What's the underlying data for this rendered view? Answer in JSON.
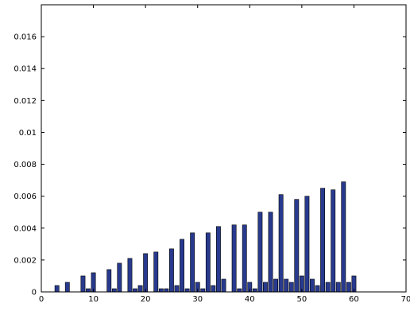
{
  "chart_data": {
    "type": "bar",
    "title": "",
    "xlabel": "",
    "ylabel": "",
    "xlim": [
      0,
      70
    ],
    "ylim": [
      0,
      0.018
    ],
    "grid": false,
    "colors": {
      "bar_fill": "#283a8e",
      "bar_edge": "#000000",
      "axes": "#000000",
      "background": "#ffffff"
    },
    "x_ticks": [
      {
        "value": 0,
        "label": "0"
      },
      {
        "value": 10,
        "label": "10"
      },
      {
        "value": 20,
        "label": "20"
      },
      {
        "value": 30,
        "label": "30"
      },
      {
        "value": 40,
        "label": "40"
      },
      {
        "value": 50,
        "label": "50"
      },
      {
        "value": 60,
        "label": "60"
      },
      {
        "value": 70,
        "label": "70"
      }
    ],
    "y_ticks": [
      {
        "value": 0,
        "label": "0"
      },
      {
        "value": 0.002,
        "label": "0.002"
      },
      {
        "value": 0.004,
        "label": "0.004"
      },
      {
        "value": 0.006,
        "label": "0.006"
      },
      {
        "value": 0.008,
        "label": "0.008"
      },
      {
        "value": 0.01,
        "label": "0.01"
      },
      {
        "value": 0.012,
        "label": "0.012"
      },
      {
        "value": 0.014,
        "label": "0.014"
      },
      {
        "value": 0.016,
        "label": "0.016"
      }
    ],
    "x": [
      1,
      2,
      3,
      4,
      5,
      6,
      7,
      8,
      9,
      10,
      11,
      12,
      13,
      14,
      15,
      16,
      17,
      18,
      19,
      20,
      21,
      22,
      23,
      24,
      25,
      26,
      27,
      28,
      29,
      30,
      31,
      32,
      33,
      34,
      35,
      36,
      37,
      38,
      39,
      40,
      41,
      42,
      43,
      44,
      45,
      46,
      47,
      48,
      49,
      50,
      51,
      52,
      53,
      54,
      55,
      56,
      57,
      58,
      59,
      60
    ],
    "values": [
      0,
      0,
      0.0004,
      0,
      0.0006,
      0,
      0,
      0.001,
      0.0002,
      0.0012,
      0,
      0,
      0.0014,
      0.0002,
      0.0018,
      0,
      0.0021,
      0.0002,
      0.0004,
      0.0024,
      0,
      0.0025,
      0.0002,
      0.0002,
      0.0027,
      0.0004,
      0.0033,
      0.0002,
      0.0037,
      0.0006,
      0.0002,
      0.0037,
      0.0004,
      0.0041,
      0.0008,
      0,
      0.0042,
      0.0002,
      0.0042,
      0.0006,
      0.0002,
      0.005,
      0.0006,
      0.005,
      0.0008,
      0.0061,
      0.0008,
      0.0006,
      0.0058,
      0.001,
      0.006,
      0.0008,
      0.0004,
      0.0065,
      0.0006,
      0.0064,
      0.0006,
      0.0069,
      0.0006,
      0.001
    ]
  }
}
